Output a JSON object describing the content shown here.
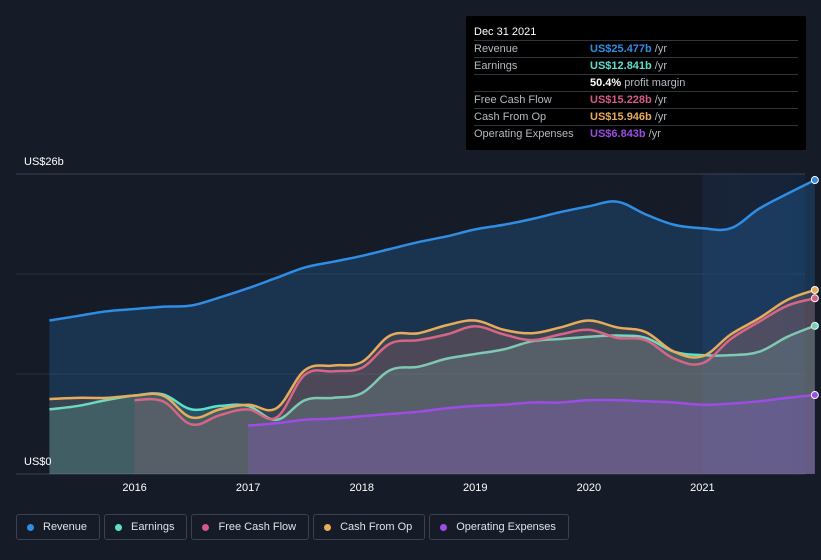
{
  "chart_data": {
    "type": "area",
    "y_top_label": "US$26b",
    "y_bottom_label": "US$0",
    "ylim": [
      0,
      26
    ],
    "x_ticks": [
      "2016",
      "2017",
      "2018",
      "2019",
      "2020",
      "2021"
    ],
    "series": [
      {
        "name": "Revenue",
        "color": "#2f8de4",
        "x": [
          2015.25,
          2015.5,
          2015.75,
          2016.0,
          2016.25,
          2016.5,
          2016.75,
          2017.0,
          2017.25,
          2017.5,
          2017.75,
          2018.0,
          2018.25,
          2018.5,
          2018.75,
          2019.0,
          2019.25,
          2019.5,
          2019.75,
          2020.0,
          2020.25,
          2020.5,
          2020.75,
          2021.0,
          2021.25,
          2021.5,
          2021.75,
          2021.99
        ],
        "y": [
          13.3,
          13.7,
          14.1,
          14.3,
          14.5,
          14.6,
          15.3,
          16.1,
          17.0,
          17.9,
          18.4,
          18.9,
          19.5,
          20.1,
          20.6,
          21.2,
          21.6,
          22.1,
          22.7,
          23.2,
          23.6,
          22.5,
          21.6,
          21.3,
          21.3,
          23.0,
          24.3,
          25.477
        ]
      },
      {
        "name": "Earnings",
        "color": "#5ce0cc",
        "x": [
          2015.25,
          2015.5,
          2015.75,
          2016.0,
          2016.25,
          2016.5,
          2016.75,
          2017.0,
          2017.25,
          2017.5,
          2017.75,
          2018.0,
          2018.25,
          2018.5,
          2018.75,
          2019.0,
          2019.25,
          2019.5,
          2019.75,
          2020.0,
          2020.25,
          2020.5,
          2020.75,
          2021.0,
          2021.25,
          2021.5,
          2021.75,
          2021.99
        ],
        "y": [
          5.6,
          5.9,
          6.4,
          6.8,
          6.9,
          5.6,
          5.9,
          5.9,
          4.7,
          6.4,
          6.6,
          7.0,
          9.0,
          9.3,
          10.0,
          10.4,
          10.8,
          11.5,
          11.7,
          11.9,
          12.0,
          11.8,
          10.6,
          10.3,
          10.3,
          10.6,
          11.9,
          12.841
        ]
      },
      {
        "name": "Free Cash Flow",
        "color": "#d45a8c",
        "x": [
          2016.0,
          2016.25,
          2016.5,
          2016.75,
          2017.0,
          2017.25,
          2017.5,
          2017.75,
          2018.0,
          2018.25,
          2018.5,
          2018.75,
          2019.0,
          2019.25,
          2019.5,
          2019.75,
          2020.0,
          2020.25,
          2020.5,
          2020.75,
          2021.0,
          2021.25,
          2021.5,
          2021.75,
          2021.99
        ],
        "y": [
          6.4,
          6.3,
          4.3,
          5.1,
          5.6,
          4.9,
          8.6,
          8.9,
          9.2,
          11.3,
          11.6,
          12.1,
          12.8,
          12.1,
          11.6,
          12.1,
          12.5,
          11.8,
          11.6,
          10.0,
          9.6,
          11.7,
          13.2,
          14.6,
          15.228
        ]
      },
      {
        "name": "Cash From Op",
        "color": "#e8ab5c",
        "x": [
          2015.25,
          2015.5,
          2015.75,
          2016.0,
          2016.25,
          2016.5,
          2016.75,
          2017.0,
          2017.25,
          2017.5,
          2017.75,
          2018.0,
          2018.25,
          2018.5,
          2018.75,
          2019.0,
          2019.25,
          2019.5,
          2019.75,
          2020.0,
          2020.25,
          2020.5,
          2020.75,
          2021.0,
          2021.25,
          2021.5,
          2021.75,
          2021.99
        ],
        "y": [
          6.5,
          6.6,
          6.6,
          6.8,
          6.8,
          4.9,
          5.6,
          6.0,
          5.7,
          9.0,
          9.4,
          9.7,
          12.0,
          12.2,
          12.9,
          13.3,
          12.5,
          12.2,
          12.7,
          13.3,
          12.7,
          12.3,
          10.6,
          10.2,
          12.1,
          13.5,
          15.1,
          15.946
        ]
      },
      {
        "name": "Operating Expenses",
        "color": "#9d4ce6",
        "x": [
          2017.0,
          2017.25,
          2017.5,
          2017.75,
          2018.0,
          2018.25,
          2018.5,
          2018.75,
          2019.0,
          2019.25,
          2019.5,
          2019.75,
          2020.0,
          2020.25,
          2020.5,
          2020.75,
          2021.0,
          2021.25,
          2021.5,
          2021.75,
          2021.99
        ],
        "y": [
          4.2,
          4.4,
          4.7,
          4.8,
          5.0,
          5.2,
          5.4,
          5.7,
          5.9,
          6.0,
          6.2,
          6.2,
          6.4,
          6.4,
          6.3,
          6.2,
          6.0,
          6.1,
          6.3,
          6.6,
          6.843
        ]
      }
    ]
  },
  "tooltip": {
    "date": "Dec 31 2021",
    "rows": [
      {
        "label": "Revenue",
        "value": "US$25.477b",
        "unit": "/yr",
        "color": "#2f8de4"
      },
      {
        "label": "Earnings",
        "value": "US$12.841b",
        "unit": "/yr",
        "color": "#5ce0cc"
      },
      {
        "label": "",
        "value": "50.4%",
        "unit": "profit margin",
        "color": "#ffffff"
      },
      {
        "label": "Free Cash Flow",
        "value": "US$15.228b",
        "unit": "/yr",
        "color": "#d45a8c"
      },
      {
        "label": "Cash From Op",
        "value": "US$15.946b",
        "unit": "/yr",
        "color": "#e8ab5c"
      },
      {
        "label": "Operating Expenses",
        "value": "US$6.843b",
        "unit": "/yr",
        "color": "#9d4ce6"
      }
    ]
  },
  "legend": [
    {
      "label": "Revenue",
      "color": "#2f8de4"
    },
    {
      "label": "Earnings",
      "color": "#5ce0cc"
    },
    {
      "label": "Free Cash Flow",
      "color": "#d45a8c"
    },
    {
      "label": "Cash From Op",
      "color": "#e8ab5c"
    },
    {
      "label": "Operating Expenses",
      "color": "#9d4ce6"
    }
  ]
}
